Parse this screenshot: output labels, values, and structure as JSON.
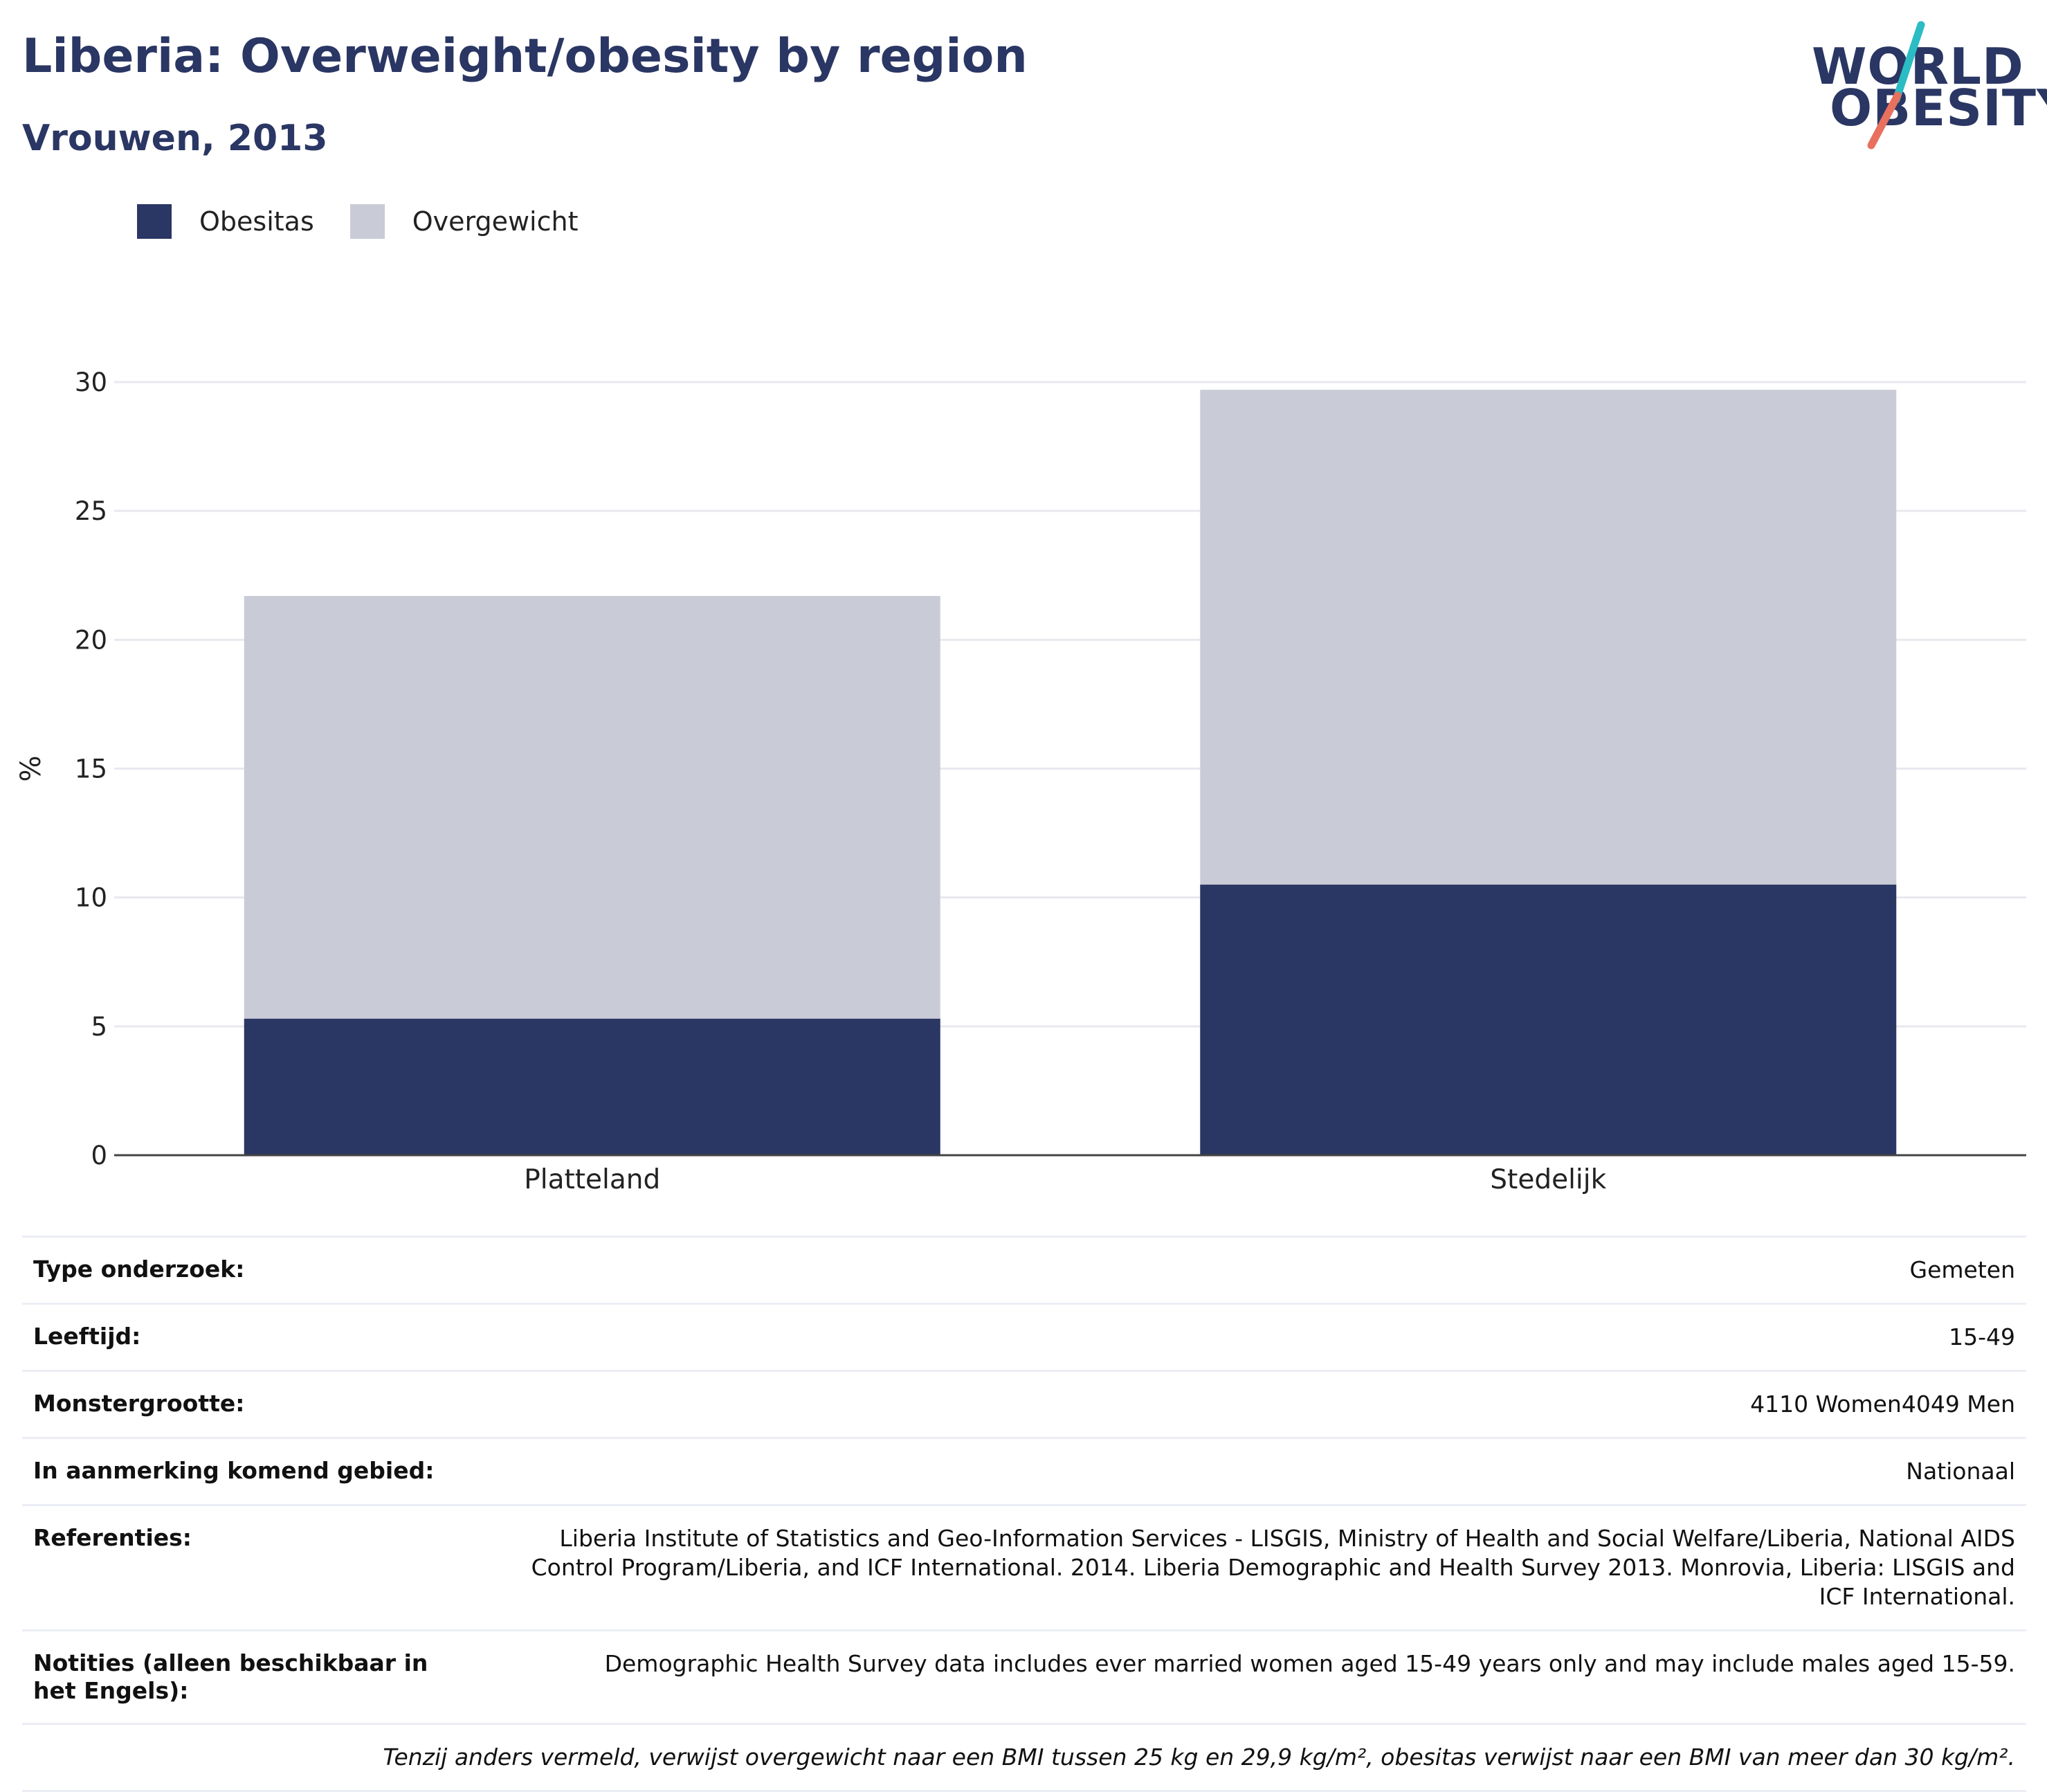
{
  "header": {
    "title": "Liberia: Overweight/obesity by region",
    "subtitle": "Vrouwen, 2013"
  },
  "logo": {
    "line1": "WORLD",
    "line2": "OBESITY",
    "colors": {
      "text": "#2a3663",
      "slash_top": "#2bbcc4",
      "slash_bottom": "#e8705f"
    }
  },
  "legend": [
    {
      "label": "Obesitas",
      "color": "#2a3663"
    },
    {
      "label": "Overgewicht",
      "color": "#c9cbd7"
    }
  ],
  "chart_data": {
    "type": "bar",
    "stacked": true,
    "categories": [
      "Platteland",
      "Stedelijk"
    ],
    "series": [
      {
        "name": "Obesitas",
        "values": [
          5.3,
          10.5
        ],
        "color": "#2a3663"
      },
      {
        "name": "Overgewicht",
        "values": [
          16.4,
          19.2
        ],
        "color": "#c9cbd7"
      }
    ],
    "ylabel": "%",
    "ylim": [
      0,
      30
    ],
    "yticks": [
      0,
      5,
      10,
      15,
      20,
      25,
      30
    ],
    "grid": true,
    "legend_position": "top-left"
  },
  "info": [
    {
      "key": "Type onderzoek:",
      "value": "Gemeten"
    },
    {
      "key": "Leeftijd:",
      "value": "15-49"
    },
    {
      "key": "Monstergrootte:",
      "value": "4110 Women4049 Men"
    },
    {
      "key": "In aanmerking komend gebied:",
      "value": "Nationaal"
    },
    {
      "key": "Referenties:",
      "value": "Liberia Institute of Statistics and Geo-Information Services - LISGIS, Ministry of Health and Social Welfare/Liberia, National AIDS Control Program/Liberia, and ICF International. 2014. Liberia Demographic and Health Survey 2013. Monrovia, Liberia: LISGIS and ICF International."
    },
    {
      "key": "Notities (alleen beschikbaar in het Engels):",
      "value": "Demographic Health Survey data includes ever married women aged 15-49 years only and may include males aged 15-59."
    }
  ],
  "footnote": "Tenzij anders vermeld, verwijst overgewicht naar een BMI tussen 25 kg en 29,9 kg/m², obesitas verwijst naar een BMI van meer dan 30 kg/m²."
}
